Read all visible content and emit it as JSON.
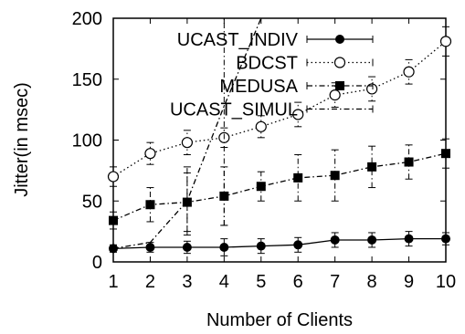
{
  "chart_data": {
    "type": "line",
    "xlabel": "Number of Clients",
    "ylabel": "Jitter(in msec)",
    "x": [
      1,
      2,
      3,
      4,
      5,
      6,
      7,
      8,
      9,
      10
    ],
    "xlim": [
      1,
      10
    ],
    "ylim": [
      0,
      200
    ],
    "xticks": [
      1,
      2,
      3,
      4,
      5,
      6,
      7,
      8,
      9,
      10
    ],
    "yticks": [
      0,
      50,
      100,
      150,
      200
    ],
    "grid": false,
    "legend_position": "top-left",
    "series": [
      {
        "name": "UCAST_INDIV",
        "marker": "filled-circle",
        "line": "solid",
        "values": [
          11,
          12,
          12,
          12,
          13,
          14,
          18,
          18,
          19,
          19
        ],
        "errors": [
          3,
          4,
          5,
          7,
          6,
          6,
          6,
          6,
          6,
          5
        ]
      },
      {
        "name": "BDCST",
        "marker": "open-circle",
        "line": "dotted",
        "values": [
          70,
          89,
          98,
          102,
          111,
          121,
          137,
          142,
          156,
          181
        ],
        "errors": [
          8,
          9,
          10,
          8,
          9,
          10,
          10,
          10,
          10,
          12
        ]
      },
      {
        "name": "MEDUSA",
        "marker": "filled-square",
        "line": "dash-dot",
        "values": [
          34,
          47,
          49,
          54,
          62,
          69,
          71,
          78,
          82,
          89
        ],
        "errors": [
          7,
          14,
          24,
          24,
          12,
          19,
          21,
          17,
          14,
          12
        ]
      },
      {
        "name": "UCAST_SIMUL",
        "marker": "none",
        "line": "dash-dot",
        "values": [
          11,
          16,
          50,
          128,
          200,
          null,
          null,
          null,
          null,
          null
        ],
        "errors": [
          0,
          0,
          28,
          98,
          0,
          0,
          0,
          0,
          0,
          0
        ]
      }
    ]
  }
}
